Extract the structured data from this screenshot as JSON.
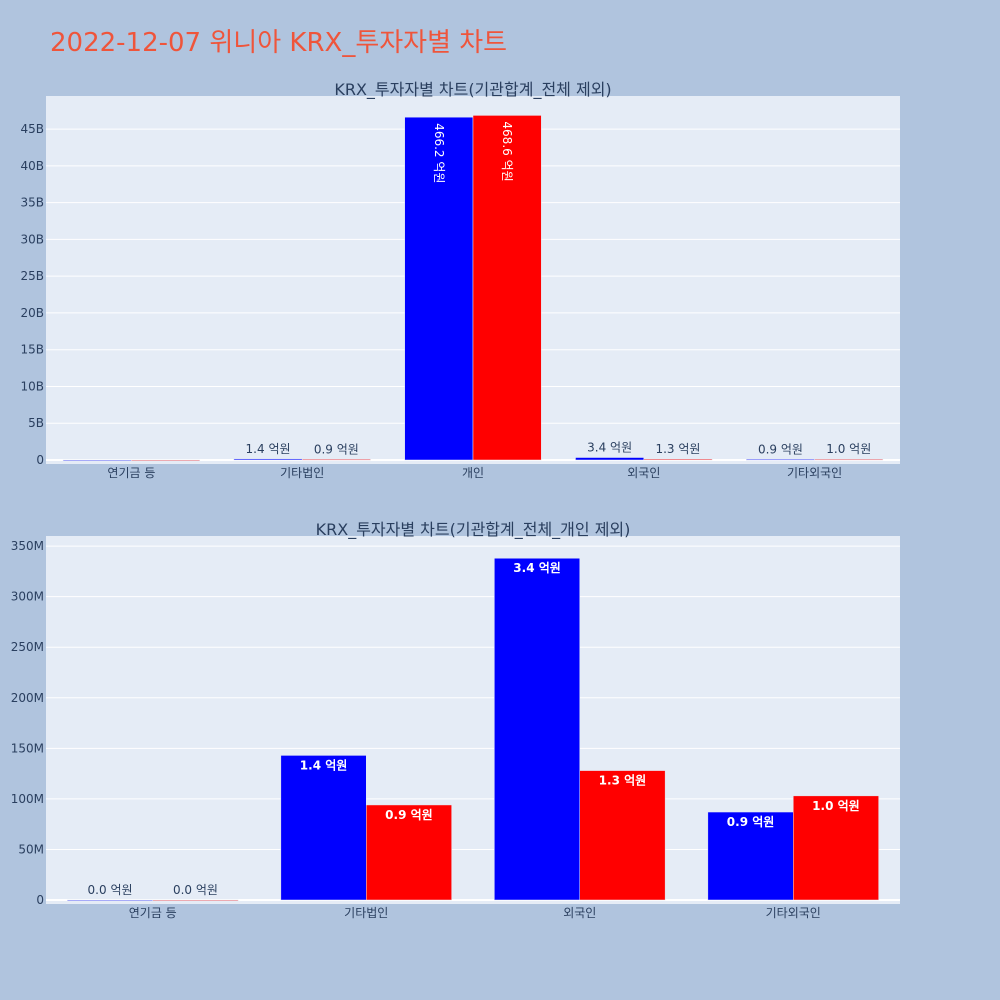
{
  "page": {
    "title": "2022-12-07 위니아 KRX_투자자별 차트",
    "background": "#b0c4de",
    "title_color": "#ef553b"
  },
  "colors": {
    "buy": "#0000ff",
    "sell": "#ff0000",
    "plot_bg": "#e5ecf6",
    "grid": "#ffffff"
  },
  "chart_data": [
    {
      "type": "bar",
      "title": "KRX_투자자별 차트(기관합계_전체 제외)",
      "categories": [
        "연기금 등",
        "기타법인",
        "개인",
        "외국인",
        "기타외국인"
      ],
      "ylim": [
        0,
        49500000000
      ],
      "yticks": [
        0,
        5000000000,
        10000000000,
        15000000000,
        20000000000,
        25000000000,
        30000000000,
        35000000000,
        40000000000,
        45000000000
      ],
      "ytick_labels": [
        "0",
        "5B",
        "10B",
        "15B",
        "20B",
        "25B",
        "30B",
        "35B",
        "40B",
        "45B"
      ],
      "grid": true,
      "series": [
        {
          "values": [
            0,
            143000000,
            46620000000,
            338000000,
            87000000
          ],
          "labels": [
            "",
            "1.4 억원",
            "466.2 억원",
            "3.4 억원",
            "0.9 억원"
          ]
        },
        {
          "values": [
            0,
            94000000,
            46860000000,
            128000000,
            103000000
          ],
          "labels": [
            "",
            "0.9 억원",
            "468.6 억원",
            "1.3 억원",
            "1.0 억원"
          ]
        }
      ]
    },
    {
      "type": "bar",
      "title": "KRX_투자자별 차트(기관합계_전체_개인 제외)",
      "categories": [
        "연기금 등",
        "기타법인",
        "외국인",
        "기타외국인"
      ],
      "ylim": [
        0,
        360000000
      ],
      "yticks": [
        0,
        50000000,
        100000000,
        150000000,
        200000000,
        250000000,
        300000000,
        350000000
      ],
      "ytick_labels": [
        "0",
        "50M",
        "100M",
        "150M",
        "200M",
        "250M",
        "300M",
        "350M"
      ],
      "grid": true,
      "series": [
        {
          "values": [
            0,
            143000000,
            338000000,
            87000000
          ],
          "labels": [
            "0.0 억원",
            "1.4 억원",
            "3.4 억원",
            "0.9 억원"
          ]
        },
        {
          "values": [
            0,
            94000000,
            128000000,
            103000000
          ],
          "labels": [
            "0.0 억원",
            "0.9 억원",
            "1.3 억원",
            "1.0 억원"
          ]
        }
      ]
    }
  ]
}
